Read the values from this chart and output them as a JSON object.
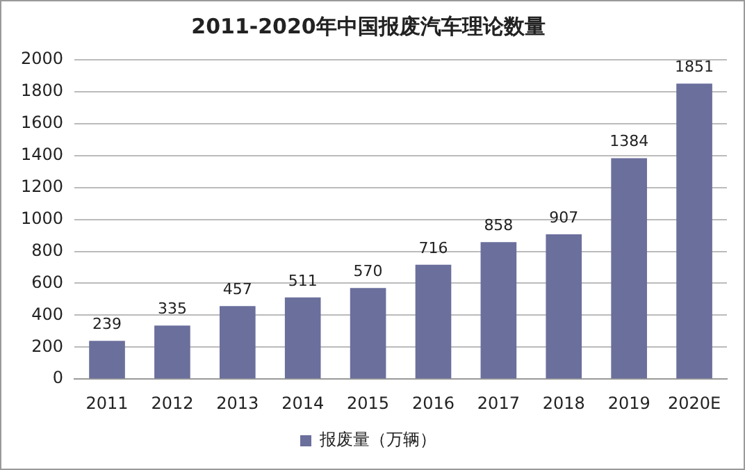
{
  "chart_data": {
    "type": "bar",
    "title": "2011-2020年中国报废汽车理论数量",
    "categories": [
      "2011",
      "2012",
      "2013",
      "2014",
      "2015",
      "2016",
      "2017",
      "2018",
      "2019",
      "2020E"
    ],
    "series": [
      {
        "name": "报废量（万辆）",
        "color": "#6b6f9c",
        "values": [
          239,
          335,
          457,
          511,
          570,
          716,
          858,
          907,
          1384,
          1851
        ]
      }
    ],
    "ylim": [
      0,
      2000
    ],
    "yticks": [
      0,
      200,
      400,
      600,
      800,
      1000,
      1200,
      1400,
      1600,
      1800,
      2000
    ],
    "grid": "y",
    "legend": "bottom",
    "data_labels": true
  }
}
